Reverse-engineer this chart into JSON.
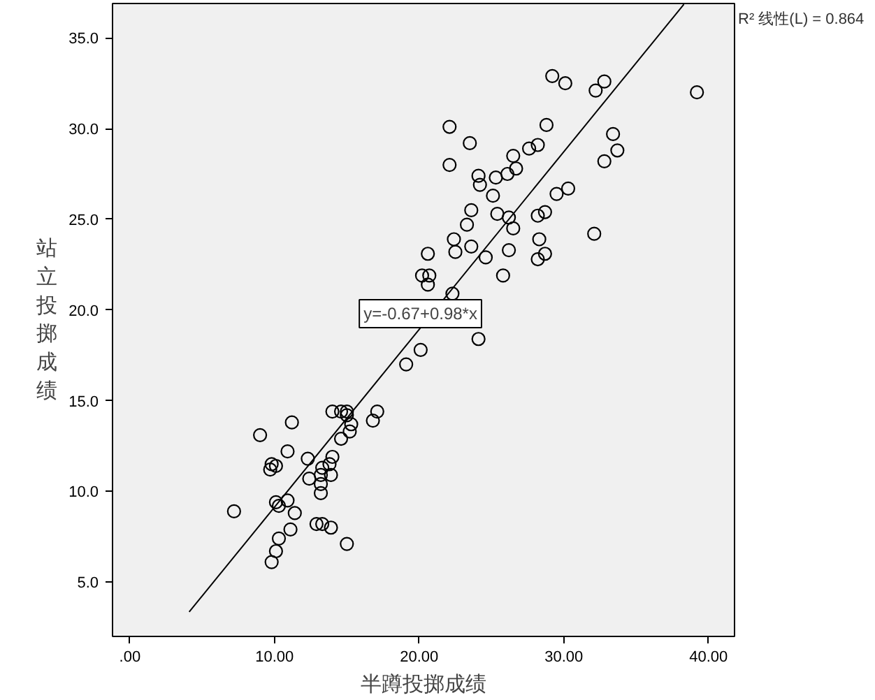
{
  "chart_data": {
    "type": "scatter",
    "xlabel": "半蹲投掷成绩",
    "ylabel": "站立投掷成绩",
    "xlim": [
      -1.2,
      41.8
    ],
    "ylim": [
      2.0,
      36.9
    ],
    "xticks": [
      {
        "value": 0,
        "label": ".00"
      },
      {
        "value": 10,
        "label": "10.00"
      },
      {
        "value": 20,
        "label": "20.00"
      },
      {
        "value": 30,
        "label": "30.00"
      },
      {
        "value": 40,
        "label": "40.00"
      }
    ],
    "yticks": [
      {
        "value": 5,
        "label": "5.0"
      },
      {
        "value": 10,
        "label": "10.0"
      },
      {
        "value": 15,
        "label": "15.0"
      },
      {
        "value": 20,
        "label": "20.0"
      },
      {
        "value": 25,
        "label": "25.0"
      },
      {
        "value": 30,
        "label": "30.0"
      },
      {
        "value": 35,
        "label": "35.0"
      }
    ],
    "grid": false,
    "series": [
      {
        "marker": "circle",
        "color": "#000000",
        "x": [
          29.2,
          30.1,
          32.8,
          32.2,
          22.1,
          23.5,
          28.8,
          26.5,
          27.6,
          28.2,
          22.1,
          24.1,
          24.2,
          25.3,
          26.1,
          26.7,
          25.1,
          23.6,
          29.5,
          30.3,
          33.4,
          33.7,
          32.8,
          39.2,
          19.1,
          20.1,
          24.1,
          22.3,
          25.8,
          20.6,
          20.2,
          20.7,
          20.6,
          22.5,
          22.4,
          23.6,
          24.6,
          26.2,
          28.3,
          28.7,
          28.2,
          23.3,
          25.4,
          26.2,
          26.5,
          28.2,
          28.7,
          32.1,
          14.0,
          14.6,
          15.0,
          15.0,
          15.3,
          15.2,
          14.6,
          17.1,
          16.8,
          11.2,
          9.0,
          10.9,
          12.3,
          9.8,
          10.1,
          9.7,
          14.0,
          13.8,
          13.3,
          13.2,
          13.9,
          12.4,
          13.2,
          13.2,
          10.1,
          10.3,
          10.9,
          7.2,
          11.4,
          11.1,
          12.9,
          13.3,
          13.9,
          15.0,
          10.3,
          10.1,
          9.8
        ],
        "values": [
          32.9,
          32.5,
          32.6,
          32.1,
          30.1,
          29.2,
          30.2,
          28.5,
          28.9,
          29.1,
          28.0,
          27.4,
          26.9,
          27.3,
          27.5,
          27.8,
          26.3,
          25.5,
          26.4,
          26.7,
          29.7,
          28.8,
          28.2,
          32.0,
          17.0,
          17.8,
          18.4,
          20.9,
          21.9,
          23.1,
          21.9,
          21.9,
          21.4,
          23.2,
          23.9,
          23.5,
          22.9,
          23.3,
          23.9,
          23.1,
          22.8,
          24.7,
          25.3,
          25.1,
          24.5,
          25.2,
          25.4,
          24.2,
          14.4,
          14.4,
          14.4,
          14.2,
          13.7,
          13.3,
          12.9,
          14.4,
          13.9,
          13.8,
          13.1,
          12.2,
          11.8,
          11.5,
          11.4,
          11.2,
          11.9,
          11.5,
          11.3,
          10.9,
          10.9,
          10.7,
          10.4,
          9.9,
          9.4,
          9.2,
          9.5,
          8.9,
          8.8,
          7.9,
          8.2,
          8.2,
          8.0,
          7.1,
          7.4,
          6.7,
          6.1
        ]
      },
      {
        "type": "line",
        "color": "#000000",
        "x": [
          4.1,
          38.3
        ],
        "values": [
          3.35,
          36.86
        ]
      }
    ],
    "annotations": [
      "y=-0.67+0.98*x",
      "R² 线性(L) = 0.864"
    ]
  }
}
